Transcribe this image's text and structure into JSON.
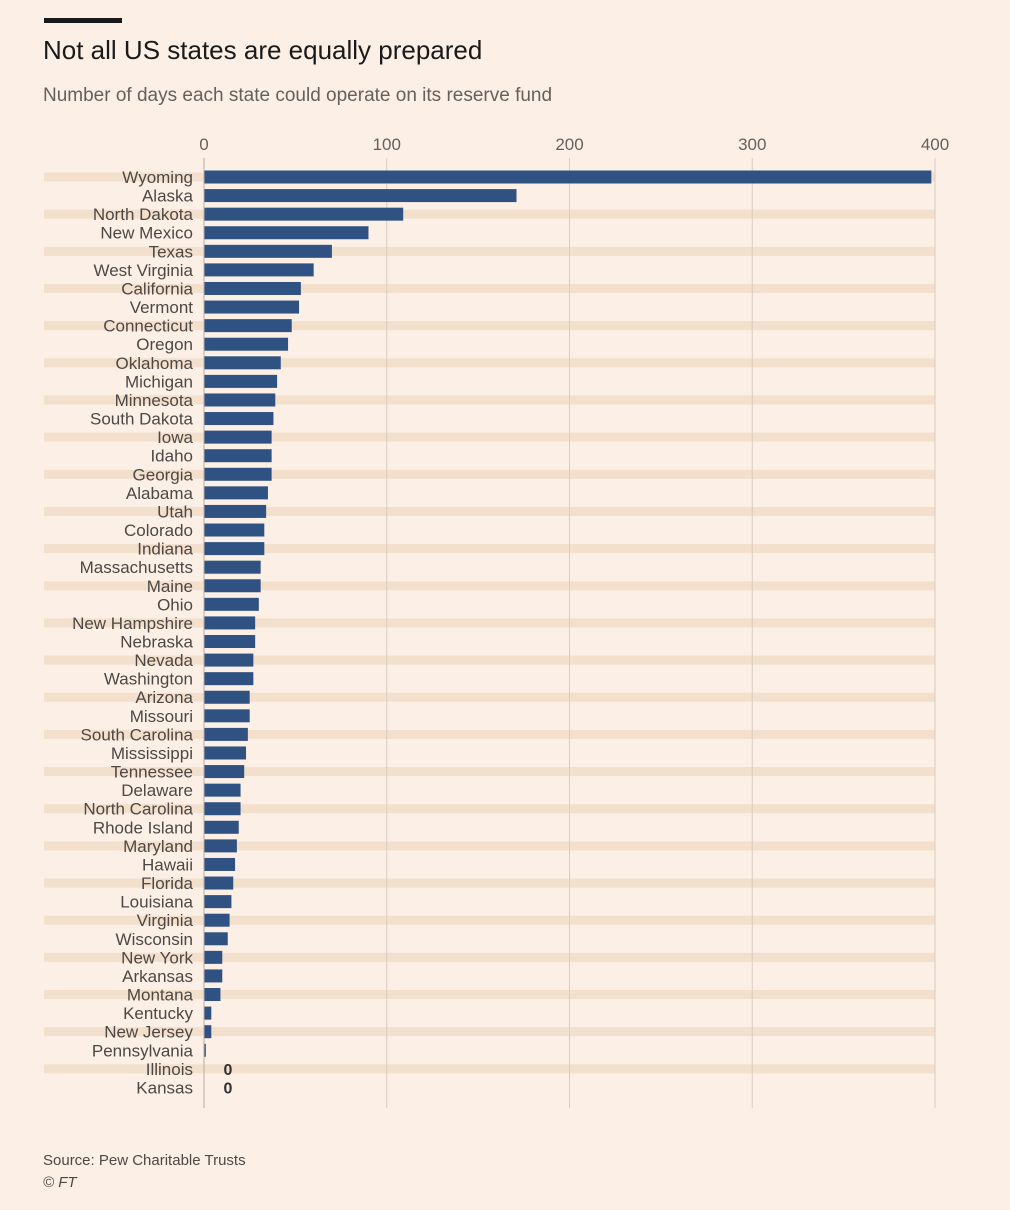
{
  "header": {
    "title": "Not all US states are equally prepared",
    "subtitle": "Number of days each state could operate on its reserve fund"
  },
  "footer": {
    "source": "Source: Pew Charitable Trusts",
    "copyright": "© FT"
  },
  "colors": {
    "background": "#fcefe6",
    "bar": "#2f5283",
    "band": "#f2dfcc",
    "grid": "#d9ccc2"
  },
  "chart_data": {
    "type": "bar",
    "orientation": "horizontal",
    "xlim": [
      0,
      400
    ],
    "xticks": [
      0,
      100,
      200,
      300,
      400
    ],
    "grid": true,
    "categories": [
      "Wyoming",
      "Alaska",
      "North Dakota",
      "New Mexico",
      "Texas",
      "West Virginia",
      "California",
      "Vermont",
      "Connecticut",
      "Oregon",
      "Oklahoma",
      "Michigan",
      "Minnesota",
      "South Dakota",
      "Iowa",
      "Idaho",
      "Georgia",
      "Alabama",
      "Utah",
      "Colorado",
      "Indiana",
      "Massachusetts",
      "Maine",
      "Ohio",
      "New Hampshire",
      "Nebraska",
      "Nevada",
      "Washington",
      "Arizona",
      "Missouri",
      "South Carolina",
      "Mississippi",
      "Tennessee",
      "Delaware",
      "North Carolina",
      "Rhode Island",
      "Maryland",
      "Hawaii",
      "Florida",
      "Louisiana",
      "Virginia",
      "Wisconsin",
      "New York",
      "Arkansas",
      "Montana",
      "Kentucky",
      "New Jersey",
      "Pennsylvania",
      "Illinois",
      "Kansas"
    ],
    "values": [
      398,
      171,
      109,
      90,
      70,
      60,
      53,
      52,
      48,
      46,
      42,
      40,
      39,
      38,
      37,
      37,
      37,
      35,
      34,
      33,
      33,
      31,
      31,
      30,
      28,
      28,
      27,
      27,
      25,
      25,
      24,
      23,
      22,
      20,
      20,
      19,
      18,
      17,
      16,
      15,
      14,
      13,
      10,
      10,
      9,
      4,
      4,
      1,
      0,
      0
    ],
    "data_labels": [
      {
        "category": "Illinois",
        "text": "0"
      },
      {
        "category": "Kansas",
        "text": "0"
      }
    ]
  }
}
